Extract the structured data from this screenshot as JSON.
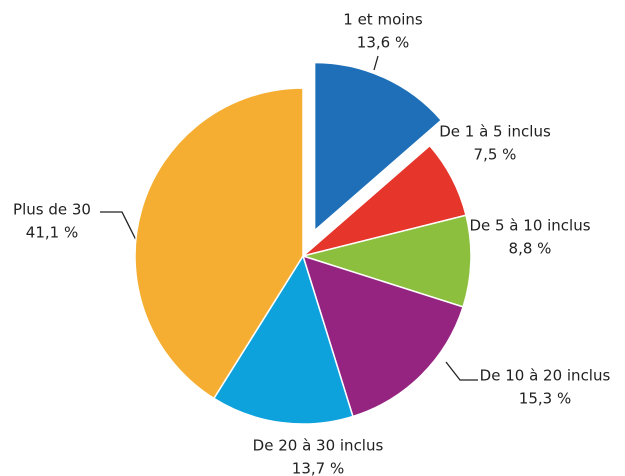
{
  "chart_data": {
    "type": "pie",
    "categories": [
      "1 et moins",
      "De 1 à 5 inclus",
      "De 5 à 10 inclus",
      "De 10 à 20 inclus",
      "De 20 à 30 inclus",
      "Plus de 30"
    ],
    "values": [
      13.6,
      7.5,
      8.8,
      15.3,
      13.7,
      41.1
    ],
    "value_labels": [
      "13,6 %",
      "7,5 %",
      "8,8 %",
      "15,3 %",
      "13,7 %",
      "41,1 %"
    ],
    "colors": [
      "#1f6fb8",
      "#e6352b",
      "#8dbf3f",
      "#952481",
      "#0ea2dd",
      "#f5ae31"
    ],
    "exploded": [
      0
    ]
  }
}
